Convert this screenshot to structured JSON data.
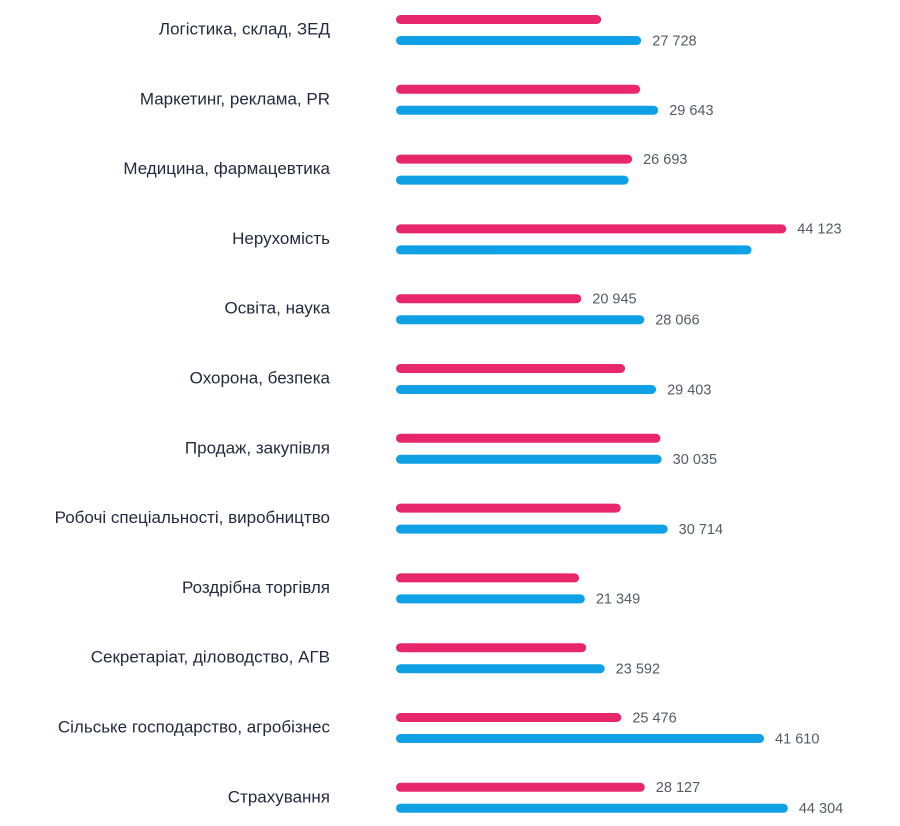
{
  "chart_data": {
    "type": "bar",
    "orientation": "horizontal",
    "title": "",
    "xlabel": "",
    "ylabel": "",
    "xlim": [
      0,
      45000
    ],
    "grid": false,
    "legend": "none",
    "categories": [
      "Логістика, склад, ЗЕД",
      "Маркетинг, реклама, PR",
      "Медицина, фармацевтика",
      "Нерухомість",
      "Освіта, наука",
      "Охорона, безпека",
      "Продаж, закупівля",
      "Робочі спеціальності, виробництво",
      "Роздрібна торгівля",
      "Секретаріат, діловодство, АГВ",
      "Сільське господарство, агробізнес",
      "Страхування"
    ],
    "series": [
      {
        "color": "#e8266a",
        "values": [
          23200,
          27600,
          26693,
          44123,
          20945,
          25900,
          29900,
          25400,
          20700,
          21500,
          25476,
          28127
        ],
        "labels": [
          "",
          "",
          "26 693",
          "44 123",
          "20 945",
          "",
          "",
          "",
          "",
          "",
          "25 476",
          "28 127"
        ]
      },
      {
        "color": "#0fa0e6",
        "values": [
          27728,
          29643,
          26300,
          40200,
          28066,
          29403,
          30035,
          30714,
          21349,
          23592,
          41610,
          44304
        ],
        "labels": [
          "27 728",
          "29 643",
          "",
          "",
          "28 066",
          "29 403",
          "30 035",
          "30 714",
          "21 349",
          "23 592",
          "41 610",
          "44 304"
        ]
      }
    ]
  }
}
